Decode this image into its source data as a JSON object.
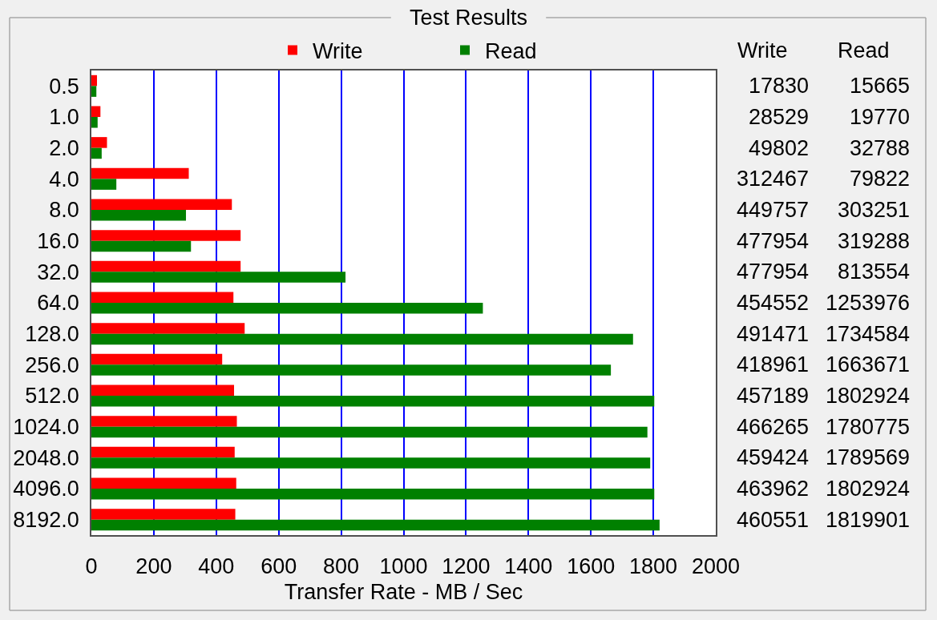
{
  "chart_data": {
    "type": "bar",
    "title": "Test Results",
    "xlabel": "Transfer Rate - MB / Sec",
    "orientation": "horizontal",
    "categories": [
      "0.5",
      "1.0",
      "2.0",
      "4.0",
      "8.0",
      "16.0",
      "32.0",
      "64.0",
      "128.0",
      "256.0",
      "512.0",
      "1024.0",
      "2048.0",
      "4096.0",
      "8192.0"
    ],
    "series": [
      {
        "name": "Write",
        "color": "#ff0000",
        "values": [
          18,
          29,
          50,
          312,
          450,
          478,
          478,
          455,
          491,
          419,
          457,
          466,
          459,
          464,
          461
        ]
      },
      {
        "name": "Read",
        "color": "#008000",
        "values": [
          16,
          20,
          33,
          80,
          303,
          319,
          814,
          1254,
          1735,
          1664,
          1803,
          1781,
          1790,
          1803,
          1820
        ]
      }
    ],
    "annotations": [
      "17830",
      "15665",
      "28529",
      "19770",
      "49802",
      "32788",
      "312467",
      "79822",
      "449757",
      "303251",
      "477954",
      "319288",
      "477954",
      "813554",
      "454552",
      "1253976",
      "491471",
      "1734584",
      "418961",
      "1663671",
      "457189",
      "1802924",
      "466265",
      "1780775",
      "459424",
      "1789569",
      "463962",
      "1802924",
      "460551",
      "1819901"
    ],
    "xlim": [
      0,
      2000
    ],
    "xticks": [
      0,
      200,
      400,
      600,
      800,
      1000,
      1200,
      1400,
      1600,
      1800,
      2000
    ],
    "grid": "x",
    "legend": "top"
  }
}
